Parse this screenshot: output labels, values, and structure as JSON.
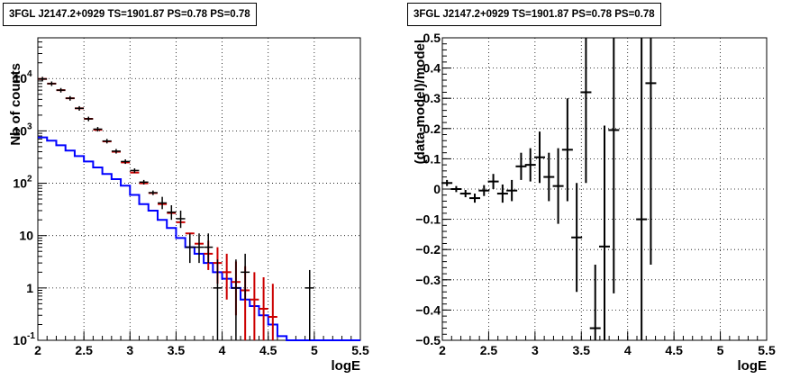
{
  "chart_data": [
    {
      "type": "line",
      "title": "3FGL J2147.2+0929 TS=1901.87 PS=0.78 PS=0.78",
      "xlabel": "logE",
      "ylabel": "Nb of counts",
      "xlim": [
        2,
        5.5
      ],
      "ylim": [
        0.1,
        60000
      ],
      "yscale": "log",
      "grid": true,
      "x_ticks": [
        "2",
        "2.5",
        "3",
        "3.5",
        "4",
        "4.5",
        "5",
        "5.5"
      ],
      "y_ticks": [
        {
          "value": 0.1,
          "label": "10",
          "exp": "-1"
        },
        {
          "value": 1,
          "label": "1",
          "exp": ""
        },
        {
          "value": 10,
          "label": "10",
          "exp": ""
        },
        {
          "value": 100,
          "label": "10",
          "exp": "2"
        },
        {
          "value": 1000,
          "label": "10",
          "exp": "3"
        },
        {
          "value": 10000,
          "label": "10",
          "exp": "4"
        }
      ],
      "series": [
        {
          "color": "#0000ff",
          "style": "step",
          "edges": [
            2.0,
            2.1,
            2.2,
            2.3,
            2.4,
            2.5,
            2.6,
            2.7,
            2.8,
            2.9,
            3.0,
            3.1,
            3.2,
            3.3,
            3.4,
            3.5,
            3.6,
            3.7,
            3.8,
            3.9,
            4.0,
            4.1,
            4.2,
            4.3,
            4.4,
            4.5,
            4.6,
            4.7,
            4.8,
            4.9,
            5.0,
            5.1,
            5.2,
            5.3,
            5.4,
            5.5
          ],
          "values": [
            750,
            650,
            530,
            420,
            330,
            260,
            200,
            150,
            120,
            90,
            60,
            40,
            30,
            20,
            14,
            9,
            6,
            4.5,
            3,
            2,
            1.5,
            1,
            0.6,
            0.45,
            0.3,
            0.2,
            0.12,
            0.1,
            0.1,
            0.1,
            0.1,
            0.1,
            0.1,
            0.1,
            0.1
          ]
        },
        {
          "color": "#cc0000",
          "style": "markers",
          "points": [
            {
              "x": 2.05,
              "y": 9800
            },
            {
              "x": 2.15,
              "y": 8000
            },
            {
              "x": 2.25,
              "y": 6000
            },
            {
              "x": 2.35,
              "y": 4200
            },
            {
              "x": 2.45,
              "y": 2700
            },
            {
              "x": 2.55,
              "y": 1700
            },
            {
              "x": 2.65,
              "y": 1050
            },
            {
              "x": 2.75,
              "y": 630
            },
            {
              "x": 2.85,
              "y": 400
            },
            {
              "x": 2.95,
              "y": 250
            },
            {
              "x": 3.05,
              "y": 160
            },
            {
              "x": 3.15,
              "y": 100
            },
            {
              "x": 3.25,
              "y": 65
            },
            {
              "x": 3.35,
              "y": 40
            },
            {
              "x": 3.45,
              "y": 27
            },
            {
              "x": 3.55,
              "y": 18
            },
            {
              "x": 3.65,
              "y": 11
            },
            {
              "x": 3.75,
              "y": 7
            },
            {
              "x": 3.85,
              "y": 4.5,
              "lo": 2.2,
              "hi": 8
            },
            {
              "x": 3.95,
              "y": 3,
              "lo": 1.2,
              "hi": 6
            },
            {
              "x": 4.05,
              "y": 2,
              "lo": 0.6,
              "hi": 4.5
            },
            {
              "x": 4.15,
              "y": 1.3,
              "lo": 0.3,
              "hi": 3.2
            },
            {
              "x": 4.25,
              "y": 0.9,
              "lo": 0.1,
              "hi": 2.6
            },
            {
              "x": 4.35,
              "y": 0.6,
              "lo": 0.1,
              "hi": 2
            },
            {
              "x": 4.45,
              "y": 0.4,
              "lo": 0.1,
              "hi": 1.6
            },
            {
              "x": 4.55,
              "y": 0.28,
              "lo": 0.1,
              "hi": 1.2
            }
          ]
        },
        {
          "color": "#000000",
          "style": "errorbars",
          "points": [
            {
              "x": 2.05,
              "y": 9800
            },
            {
              "x": 2.15,
              "y": 8000
            },
            {
              "x": 2.25,
              "y": 6000
            },
            {
              "x": 2.35,
              "y": 4200
            },
            {
              "x": 2.45,
              "y": 2700
            },
            {
              "x": 2.55,
              "y": 1700
            },
            {
              "x": 2.65,
              "y": 1080
            },
            {
              "x": 2.75,
              "y": 640
            },
            {
              "x": 2.85,
              "y": 410
            },
            {
              "x": 2.95,
              "y": 260
            },
            {
              "x": 3.05,
              "y": 175
            },
            {
              "x": 3.15,
              "y": 105
            },
            {
              "x": 3.25,
              "y": 66
            },
            {
              "x": 3.35,
              "y": 42,
              "lo": 32,
              "hi": 55
            },
            {
              "x": 3.45,
              "y": 28,
              "lo": 20,
              "hi": 38
            },
            {
              "x": 3.55,
              "y": 21,
              "lo": 14,
              "hi": 30
            },
            {
              "x": 3.65,
              "y": 6,
              "lo": 3,
              "hi": 11
            },
            {
              "x": 3.75,
              "y": 6,
              "lo": 3,
              "hi": 11
            },
            {
              "x": 3.85,
              "y": 6,
              "lo": 3,
              "hi": 11
            },
            {
              "x": 3.95,
              "y": 1,
              "lo": 0.1,
              "hi": 3.5
            },
            {
              "x": 4.15,
              "y": 1,
              "lo": 0.1,
              "hi": 3.5
            },
            {
              "x": 4.25,
              "y": 2,
              "lo": 0.6,
              "hi": 4.5
            },
            {
              "x": 4.95,
              "y": 1,
              "lo": 0.1,
              "hi": 2.2
            }
          ]
        }
      ]
    },
    {
      "type": "scatter",
      "title": "3FGL J2147.2+0929 TS=1901.87 PS=0.78 PS=0.78",
      "xlabel": "logE",
      "ylabel": "(data-model)/model",
      "xlim": [
        2,
        5.5
      ],
      "ylim": [
        -0.5,
        0.5
      ],
      "grid": true,
      "x_ticks": [
        "2",
        "2.5",
        "3",
        "3.5",
        "4",
        "4.5",
        "5",
        "5.5"
      ],
      "y_ticks": [
        "−0.5",
        "−0.4",
        "−0.3",
        "−0.2",
        "−0.1",
        "0",
        "0.1",
        "0.2",
        "0.3",
        "0.4",
        "0.5"
      ],
      "points": [
        {
          "x": 2.05,
          "y": 0.02,
          "err": 0.01
        },
        {
          "x": 2.15,
          "y": 0.0,
          "err": 0.01
        },
        {
          "x": 2.25,
          "y": -0.015,
          "err": 0.012
        },
        {
          "x": 2.35,
          "y": -0.03,
          "err": 0.015
        },
        {
          "x": 2.45,
          "y": -0.005,
          "err": 0.018
        },
        {
          "x": 2.55,
          "y": 0.025,
          "err": 0.025
        },
        {
          "x": 2.65,
          "y": -0.015,
          "err": 0.03
        },
        {
          "x": 2.75,
          "y": -0.005,
          "err": 0.035
        },
        {
          "x": 2.85,
          "y": 0.075,
          "err": 0.045
        },
        {
          "x": 2.95,
          "y": 0.08,
          "err": 0.055
        },
        {
          "x": 3.05,
          "y": 0.105,
          "err": 0.085
        },
        {
          "x": 3.15,
          "y": 0.04,
          "err": 0.08
        },
        {
          "x": 3.25,
          "y": 0.01,
          "err": 0.125
        },
        {
          "x": 3.35,
          "y": 0.13,
          "err": 0.17
        },
        {
          "x": 3.45,
          "y": -0.16,
          "err": 0.18
        },
        {
          "x": 3.55,
          "y": 0.32,
          "err": 0.3
        },
        {
          "x": 3.65,
          "y": -0.46,
          "err": 0.21
        },
        {
          "x": 3.75,
          "y": -0.19,
          "err": 0.4
        },
        {
          "x": 3.85,
          "y": 0.195,
          "err": 0.54
        },
        {
          "x": 4.15,
          "y": -0.1,
          "err": 0.6
        },
        {
          "x": 4.25,
          "y": 0.35,
          "err": 0.6
        }
      ]
    }
  ]
}
